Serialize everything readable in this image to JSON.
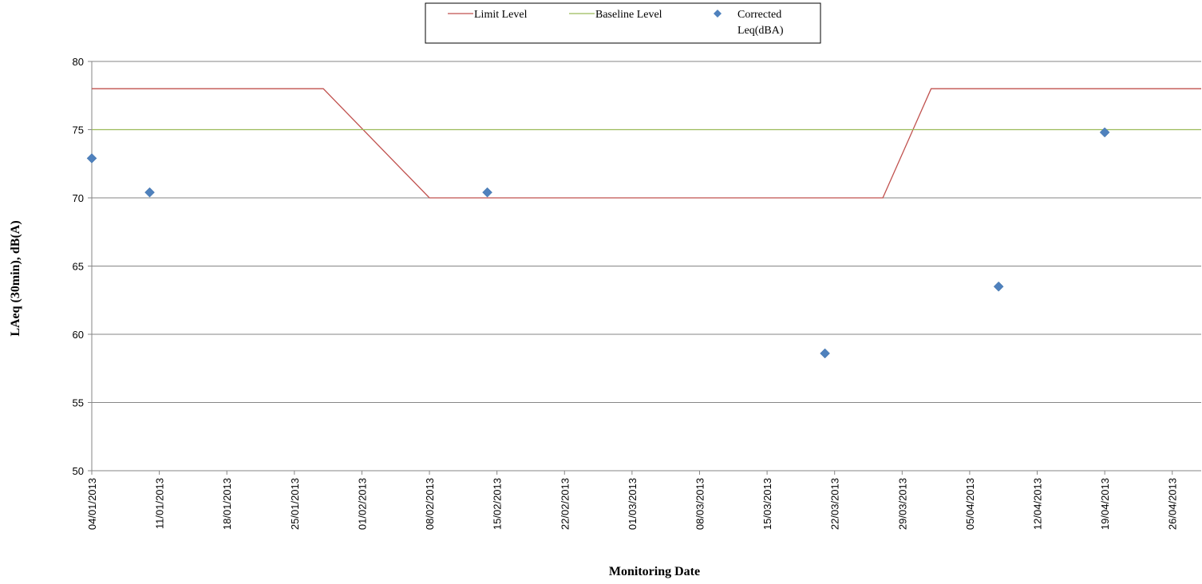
{
  "chart_data": {
    "type": "line",
    "title": "",
    "xlabel": "Monitoring Date",
    "ylabel": "LAeq (30min), dB(A)",
    "xlim": [
      "2013-01-04",
      "2013-04-29"
    ],
    "ylim": [
      50,
      80
    ],
    "y_ticks": [
      50,
      55,
      60,
      65,
      70,
      75,
      80
    ],
    "x_ticks": [
      {
        "date": "2013-01-04",
        "label": "04/01/2013"
      },
      {
        "date": "2013-01-11",
        "label": "11/01/2013"
      },
      {
        "date": "2013-01-18",
        "label": "18/01/2013"
      },
      {
        "date": "2013-01-25",
        "label": "25/01/2013"
      },
      {
        "date": "2013-02-01",
        "label": "01/02/2013"
      },
      {
        "date": "2013-02-08",
        "label": "08/02/2013"
      },
      {
        "date": "2013-02-15",
        "label": "15/02/2013"
      },
      {
        "date": "2013-02-22",
        "label": "22/02/2013"
      },
      {
        "date": "2013-03-01",
        "label": "01/03/2013"
      },
      {
        "date": "2013-03-08",
        "label": "08/03/2013"
      },
      {
        "date": "2013-03-15",
        "label": "15/03/2013"
      },
      {
        "date": "2013-03-22",
        "label": "22/03/2013"
      },
      {
        "date": "2013-03-29",
        "label": "29/03/2013"
      },
      {
        "date": "2013-04-05",
        "label": "05/04/2013"
      },
      {
        "date": "2013-04-12",
        "label": "12/04/2013"
      },
      {
        "date": "2013-04-19",
        "label": "19/04/2013"
      },
      {
        "date": "2013-04-26",
        "label": "26/04/2013"
      }
    ],
    "grid": {
      "y": true,
      "x": false
    },
    "legend": {
      "placement": "top-center"
    },
    "series": [
      {
        "name": "Limit Level",
        "kind": "line",
        "color": "#c0504d",
        "points": [
          {
            "x": "2013-01-04",
            "y": 78
          },
          {
            "x": "2013-01-28",
            "y": 78
          },
          {
            "x": "2013-02-08",
            "y": 70
          },
          {
            "x": "2013-03-27",
            "y": 70
          },
          {
            "x": "2013-04-01",
            "y": 78
          },
          {
            "x": "2013-04-29",
            "y": 78
          }
        ]
      },
      {
        "name": "Baseline Level",
        "kind": "line",
        "color": "#9bbb59",
        "points": [
          {
            "x": "2013-01-04",
            "y": 75
          },
          {
            "x": "2013-04-29",
            "y": 75
          }
        ]
      },
      {
        "name": "Corrected Leq(dBA)",
        "kind": "scatter",
        "marker": "diamond",
        "color": "#4f81bd",
        "points": [
          {
            "x": "2013-01-04",
            "y": 72.9
          },
          {
            "x": "2013-01-10",
            "y": 70.4
          },
          {
            "x": "2013-02-14",
            "y": 70.4
          },
          {
            "x": "2013-03-21",
            "y": 58.6
          },
          {
            "x": "2013-04-08",
            "y": 63.5
          },
          {
            "x": "2013-04-19",
            "y": 74.8
          }
        ]
      }
    ]
  }
}
